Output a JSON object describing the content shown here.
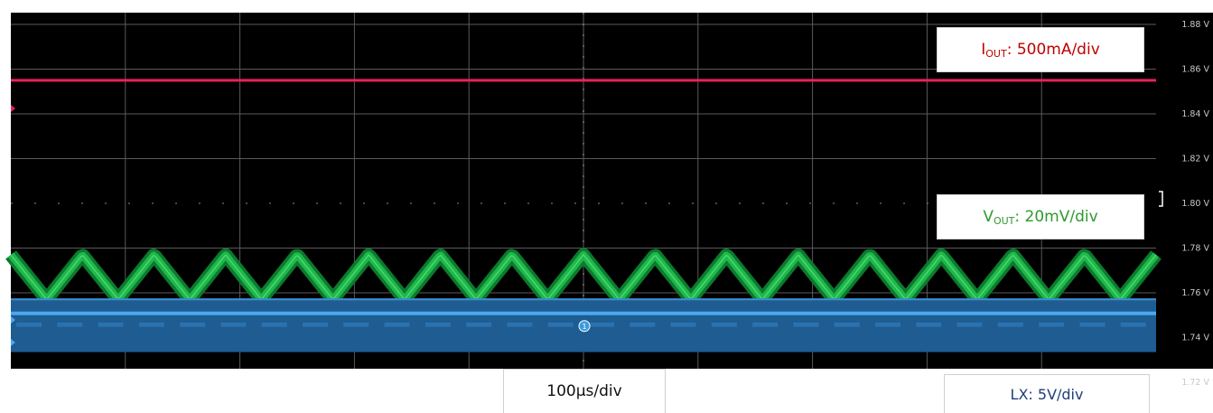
{
  "chart_data": {
    "type": "line",
    "title": "",
    "xlabel": "",
    "ylabel": "",
    "time_scale": "100µs/div",
    "y_ticks": [
      "1.88 V",
      "1.86 V",
      "1.84 V",
      "1.82 V",
      "1.80 V",
      "1.78 V",
      "1.76 V",
      "1.74 V",
      "1.72 V"
    ],
    "ylim": [
      1.72,
      1.88
    ],
    "x_divisions": 10,
    "grid": true,
    "background": "#000000",
    "series": [
      {
        "name": "IOUT",
        "color": "#e8225a",
        "shape": "flat",
        "level_v": 1.855
      },
      {
        "name": "VOUT",
        "color": "#1fb84a",
        "shape": "triangle",
        "cycles": 16,
        "peak_v": 1.777,
        "trough_v": 1.757
      },
      {
        "name": "LX",
        "color": "#4aa8f0",
        "shape": "band",
        "center_v": 1.7508,
        "band_top_v": 1.7575,
        "band_bottom_v": 1.7335,
        "marker": "1"
      }
    ]
  },
  "labels": {
    "iout_main": "I",
    "iout_sub": "OUT",
    "iout_scale": ": 500mA/div",
    "vout_main": "V",
    "vout_sub": "OUT",
    "vout_scale": ": 20mV/div",
    "time": "100µs/div",
    "lx": "LX: 5V/div"
  }
}
